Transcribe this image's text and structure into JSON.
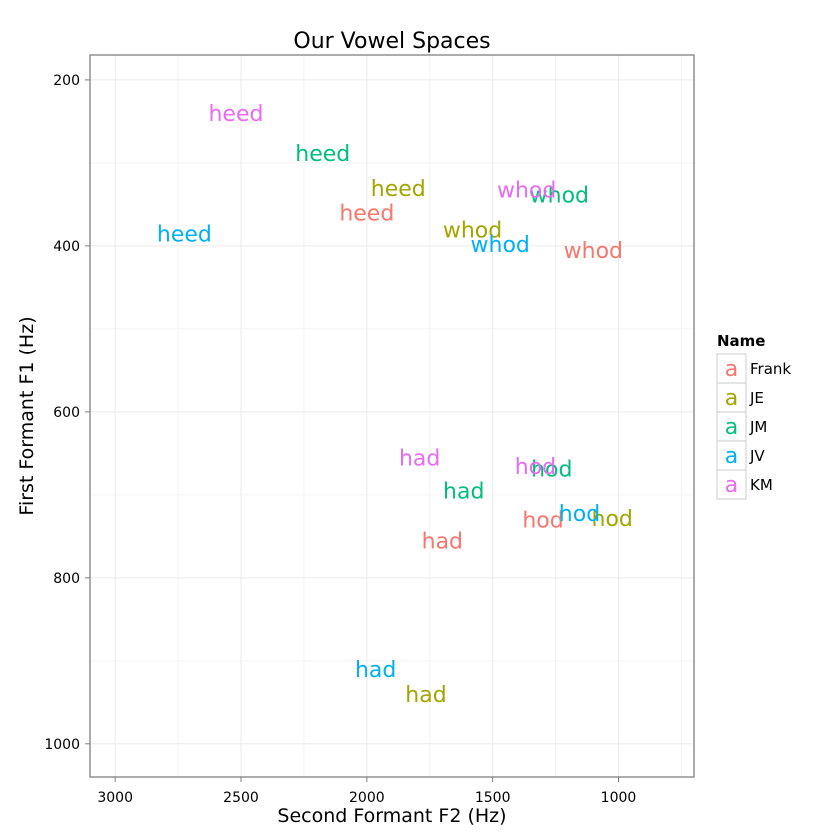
{
  "chart_data": {
    "type": "scatter",
    "title": "Our Vowel Spaces",
    "xlabel": "Second Formant F2 (Hz)",
    "ylabel": "First Formant F1 (Hz)",
    "x_reversed": true,
    "y_reversed": true,
    "xlim": [
      3100,
      700
    ],
    "ylim": [
      1040,
      170
    ],
    "xticks": [
      3000,
      2500,
      2000,
      1500,
      1000
    ],
    "yticks": [
      200,
      400,
      600,
      800,
      1000
    ],
    "xtick_labels": [
      "3000",
      "2500",
      "2000",
      "1500",
      "1000"
    ],
    "ytick_labels": [
      "200",
      "400",
      "600",
      "800",
      "1000"
    ],
    "grid": true,
    "legend": {
      "title": "Name",
      "placement": "right",
      "glyph": "a",
      "entries": [
        "Frank",
        "JE",
        "JM",
        "JV",
        "KM"
      ]
    },
    "series": [
      {
        "name": "Frank",
        "color": "#F8766D",
        "points": [
          {
            "label": "heed",
            "f2": 2000,
            "f1": 360
          },
          {
            "label": "whod",
            "f2": 1100,
            "f1": 405
          },
          {
            "label": "had",
            "f2": 1700,
            "f1": 755
          },
          {
            "label": "hod",
            "f2": 1300,
            "f1": 730
          }
        ]
      },
      {
        "name": "JE",
        "color": "#A3A500",
        "points": [
          {
            "label": "heed",
            "f2": 1875,
            "f1": 330
          },
          {
            "label": "whod",
            "f2": 1580,
            "f1": 380
          },
          {
            "label": "had",
            "f2": 1765,
            "f1": 940
          },
          {
            "label": "hod",
            "f2": 1025,
            "f1": 728
          }
        ]
      },
      {
        "name": "JM",
        "color": "#00BF7D",
        "points": [
          {
            "label": "heed",
            "f2": 2175,
            "f1": 288
          },
          {
            "label": "whod",
            "f2": 1235,
            "f1": 338
          },
          {
            "label": "had",
            "f2": 1615,
            "f1": 695
          },
          {
            "label": "hod",
            "f2": 1265,
            "f1": 668
          }
        ]
      },
      {
        "name": "JV",
        "color": "#00B0F6",
        "points": [
          {
            "label": "heed",
            "f2": 2725,
            "f1": 385
          },
          {
            "label": "whod",
            "f2": 1470,
            "f1": 398
          },
          {
            "label": "had",
            "f2": 1965,
            "f1": 910
          },
          {
            "label": "hod",
            "f2": 1155,
            "f1": 722
          }
        ]
      },
      {
        "name": "KM",
        "color": "#E76BF3",
        "points": [
          {
            "label": "heed",
            "f2": 2520,
            "f1": 240
          },
          {
            "label": "whod",
            "f2": 1365,
            "f1": 332
          },
          {
            "label": "had",
            "f2": 1790,
            "f1": 655
          },
          {
            "label": "hod",
            "f2": 1330,
            "f1": 665
          }
        ]
      }
    ]
  }
}
